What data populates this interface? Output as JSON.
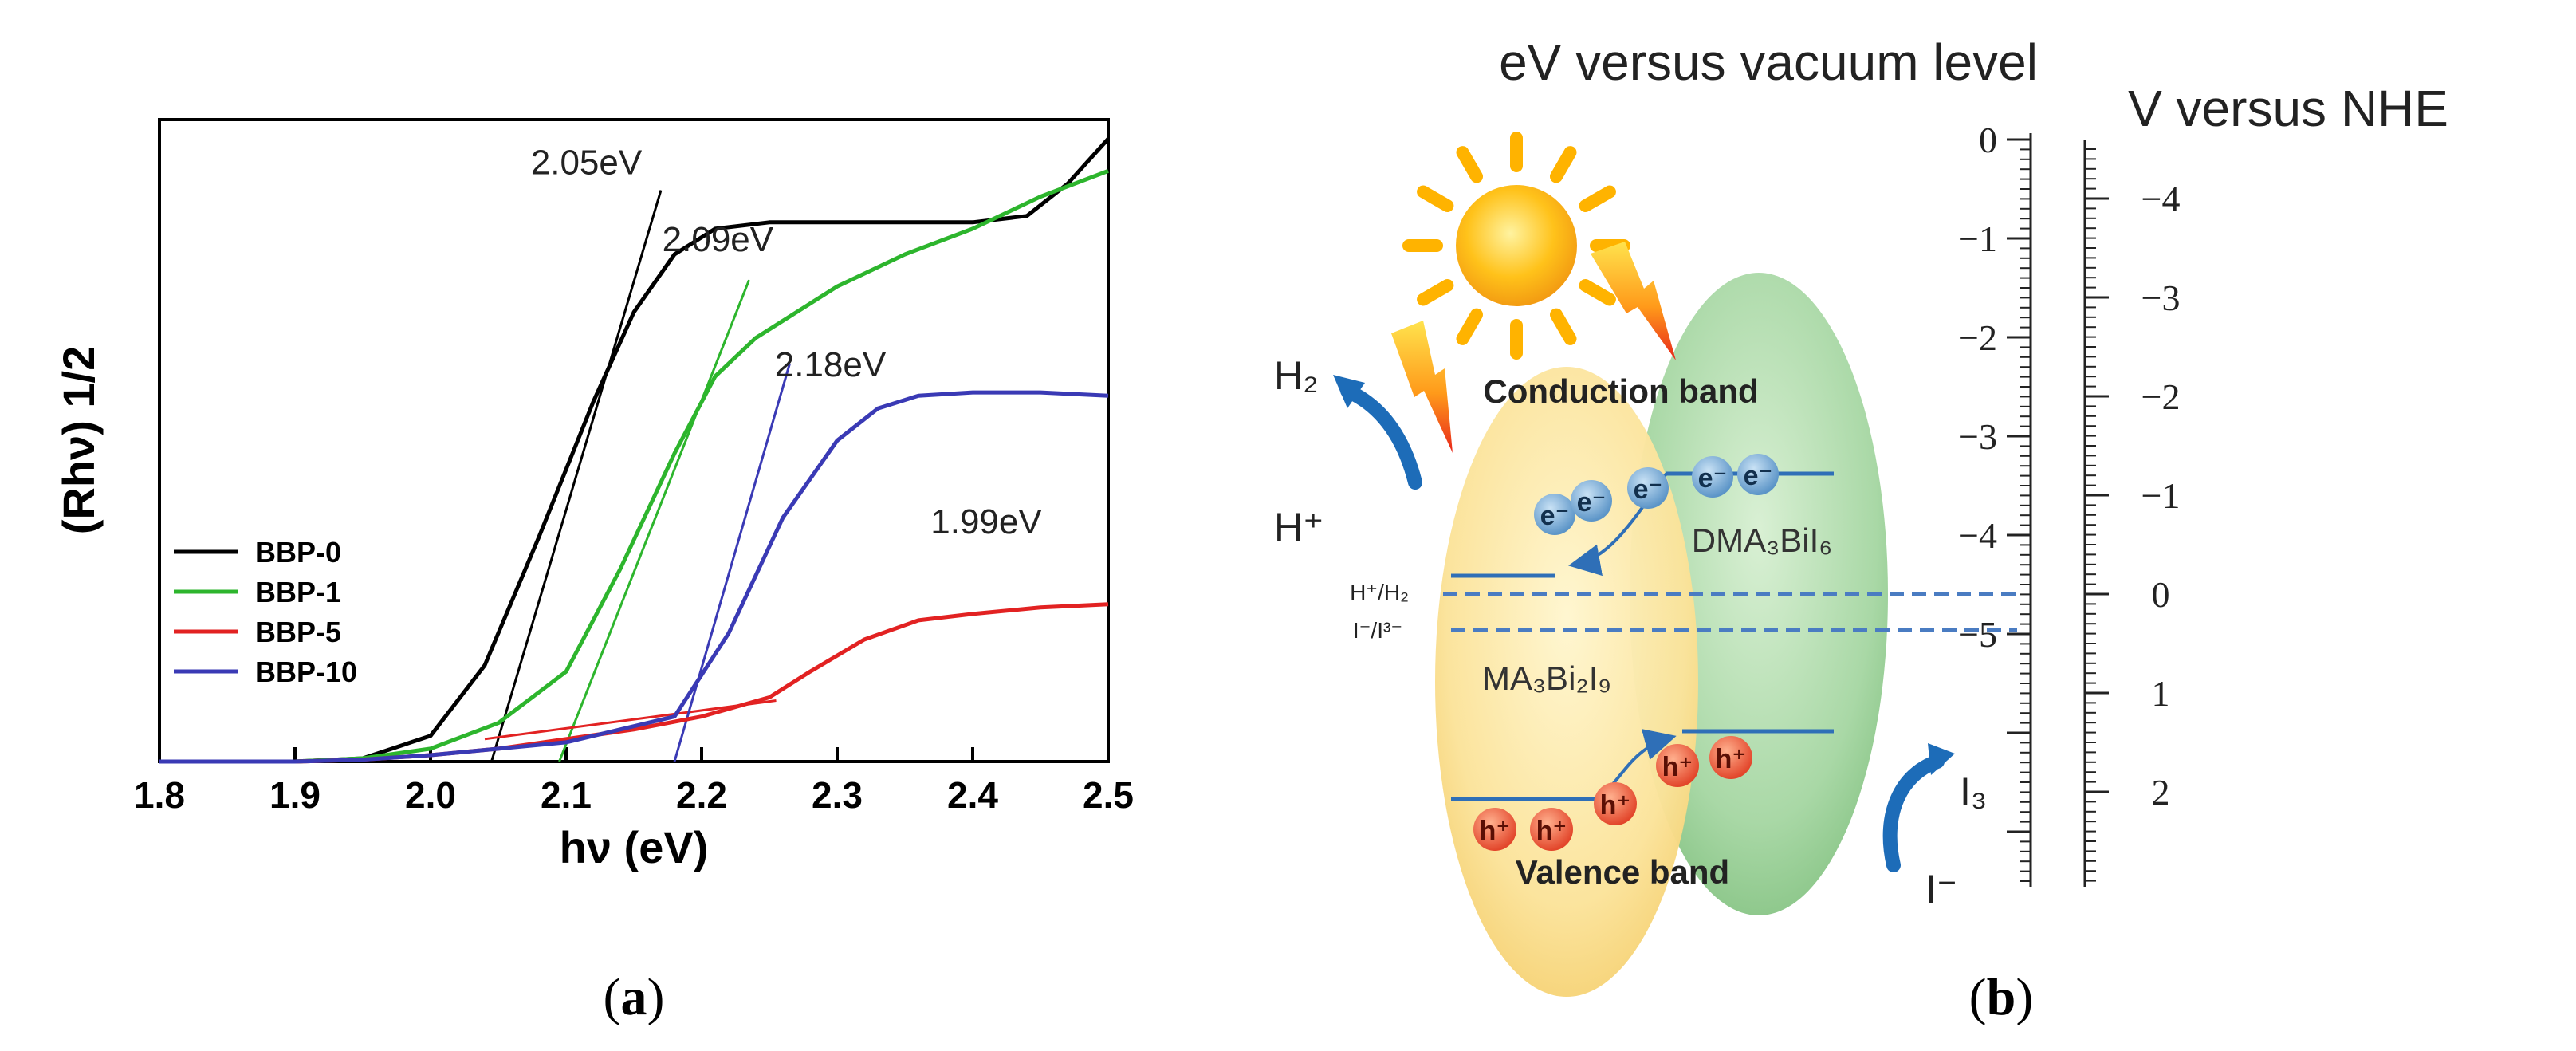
{
  "panel_a": {
    "caption": "a",
    "chart_data": {
      "type": "line",
      "xlabel": "hν (eV)",
      "ylabel": "(Rhν) 1/2",
      "xlim": [
        1.8,
        2.5
      ],
      "ylim": [
        0,
        1
      ],
      "grid": false,
      "legend_position": "bottom-left",
      "x_ticks": [
        "1.8",
        "1.9",
        "2.0",
        "2.1",
        "2.2",
        "2.3",
        "2.4",
        "2.5"
      ],
      "series": [
        {
          "name": "BBP-0",
          "color": "#000000",
          "points": [
            [
              1.8,
              0.0
            ],
            [
              1.9,
              0.0
            ],
            [
              1.95,
              0.005
            ],
            [
              2.0,
              0.04
            ],
            [
              2.04,
              0.15
            ],
            [
              2.08,
              0.35
            ],
            [
              2.12,
              0.56
            ],
            [
              2.15,
              0.7
            ],
            [
              2.18,
              0.79
            ],
            [
              2.21,
              0.83
            ],
            [
              2.25,
              0.84
            ],
            [
              2.3,
              0.84
            ],
            [
              2.35,
              0.84
            ],
            [
              2.4,
              0.84
            ],
            [
              2.44,
              0.85
            ],
            [
              2.47,
              0.9
            ],
            [
              2.5,
              0.97
            ]
          ]
        },
        {
          "name": "BBP-1",
          "color": "#2db52d",
          "points": [
            [
              1.8,
              0.0
            ],
            [
              1.9,
              0.0
            ],
            [
              1.95,
              0.005
            ],
            [
              2.0,
              0.02
            ],
            [
              2.05,
              0.06
            ],
            [
              2.1,
              0.14
            ],
            [
              2.14,
              0.3
            ],
            [
              2.18,
              0.48
            ],
            [
              2.21,
              0.6
            ],
            [
              2.24,
              0.66
            ],
            [
              2.27,
              0.7
            ],
            [
              2.3,
              0.74
            ],
            [
              2.35,
              0.79
            ],
            [
              2.4,
              0.83
            ],
            [
              2.45,
              0.88
            ],
            [
              2.5,
              0.92
            ]
          ]
        },
        {
          "name": "BBP-5",
          "color": "#e22222",
          "points": [
            [
              1.8,
              0.0
            ],
            [
              1.9,
              0.0
            ],
            [
              1.95,
              0.003
            ],
            [
              2.0,
              0.01
            ],
            [
              2.05,
              0.02
            ],
            [
              2.1,
              0.035
            ],
            [
              2.15,
              0.05
            ],
            [
              2.2,
              0.07
            ],
            [
              2.25,
              0.1
            ],
            [
              2.28,
              0.14
            ],
            [
              2.32,
              0.19
            ],
            [
              2.36,
              0.22
            ],
            [
              2.4,
              0.23
            ],
            [
              2.45,
              0.24
            ],
            [
              2.5,
              0.245
            ]
          ]
        },
        {
          "name": "BBP-10",
          "color": "#3a3ab5",
          "points": [
            [
              1.8,
              0.0
            ],
            [
              1.9,
              0.0
            ],
            [
              1.95,
              0.003
            ],
            [
              2.0,
              0.01
            ],
            [
              2.1,
              0.03
            ],
            [
              2.18,
              0.07
            ],
            [
              2.22,
              0.2
            ],
            [
              2.26,
              0.38
            ],
            [
              2.3,
              0.5
            ],
            [
              2.33,
              0.55
            ],
            [
              2.36,
              0.57
            ],
            [
              2.4,
              0.575
            ],
            [
              2.45,
              0.575
            ],
            [
              2.5,
              0.57
            ]
          ]
        }
      ],
      "tangent_lines": [
        {
          "series": "BBP-0",
          "color": "#000000",
          "from": [
            2.045,
            0.0
          ],
          "to": [
            2.17,
            0.89
          ]
        },
        {
          "series": "BBP-1",
          "color": "#2db52d",
          "from": [
            2.095,
            0.0
          ],
          "to": [
            2.235,
            0.75
          ]
        },
        {
          "series": "BBP-5",
          "color": "#e22222",
          "from": [
            2.04,
            0.035
          ],
          "to": [
            2.255,
            0.095
          ]
        },
        {
          "series": "BBP-10",
          "color": "#3a3ab5",
          "from": [
            2.18,
            0.0
          ],
          "to": [
            2.265,
            0.62
          ]
        }
      ],
      "annotations": [
        {
          "text": "2.05eV",
          "x": 2.115,
          "y": 0.915
        },
        {
          "text": "2.09eV",
          "x": 2.212,
          "y": 0.795
        },
        {
          "text": "2.18eV",
          "x": 2.295,
          "y": 0.6
        },
        {
          "text": "1.99eV",
          "x": 2.41,
          "y": 0.355
        }
      ]
    }
  },
  "panel_b": {
    "caption": "b",
    "title": "eV versus vacuum level",
    "nhe_label": "V versus NHE",
    "vacuum_axis_ticks": [
      "0",
      "−1",
      "−2",
      "−3",
      "−4",
      "−5"
    ],
    "vacuum_axis_values": [
      0,
      -1,
      -2,
      -3,
      -4,
      -5
    ],
    "nhe_axis_ticks": [
      "−4",
      "−3",
      "−2",
      "−1",
      "0",
      "1",
      "2"
    ],
    "nhe_axis_values": [
      -4,
      -3,
      -2,
      -1,
      0,
      1,
      2
    ],
    "labels": {
      "h2": "H₂",
      "hplus": "H⁺",
      "h_redox": "H⁺/H₂",
      "i_redox": "I⁻/I³⁻",
      "i3": "I₃",
      "iminus": "I⁻",
      "conduction": "Conduction band",
      "valence": "Valence band",
      "ma": "MA₃Bi₂I₉",
      "dma": "DMA₃BiI₆"
    },
    "electrons": [
      "e⁻",
      "e⁻",
      "e⁻",
      "e⁻",
      "e⁻"
    ],
    "holes": [
      "h⁺",
      "h⁺",
      "h⁺",
      "h⁺",
      "h⁺"
    ],
    "colors": {
      "ma_ellipse": "#fbe7a4",
      "dma_ellipse": "#a9d8a6",
      "electron": "#6ea7d6",
      "hole": "#ec5b3a",
      "band_line": "#2f6fb7",
      "arrow": "#1d6cb8"
    }
  }
}
